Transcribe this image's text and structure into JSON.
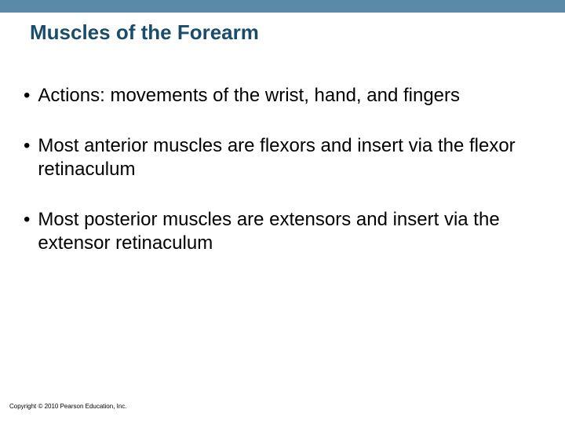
{
  "slide": {
    "title": "Muscles of the Forearm",
    "bullets": [
      {
        "text": "Actions: movements of the wrist, hand, and fingers"
      },
      {
        "text": "Most anterior muscles are flexors and insert via the flexor retinaculum"
      },
      {
        "text": "Most posterior muscles are extensors and insert via the extensor retinaculum"
      }
    ],
    "copyright": "Copyright © 2010 Pearson Education, Inc."
  },
  "style": {
    "top_bar_color": "#5a8aa8",
    "title_color": "#1a4d6b",
    "title_fontsize": 26,
    "body_fontsize": 24,
    "body_color": "#000000",
    "background_color": "#ffffff",
    "footer_fontsize": 8
  }
}
